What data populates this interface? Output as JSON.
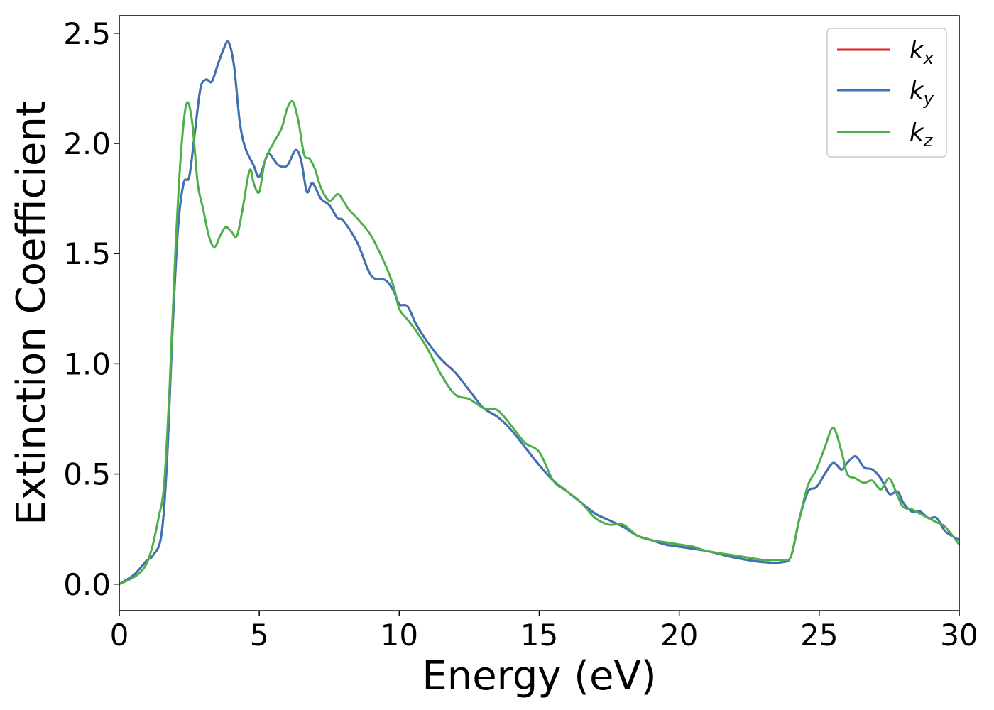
{
  "chart_data": {
    "type": "line",
    "title": "",
    "xlabel": "Energy (eV)",
    "ylabel": "Extinction Coefficient",
    "xlim": [
      0,
      30
    ],
    "ylim": [
      -0.12,
      2.58
    ],
    "xticks": [
      0,
      5,
      10,
      15,
      20,
      25,
      30
    ],
    "xtick_labels": [
      "0",
      "5",
      "10",
      "15",
      "20",
      "25",
      "30"
    ],
    "yticks": [
      0.0,
      0.5,
      1.0,
      1.5,
      2.0,
      2.5
    ],
    "ytick_labels": [
      "0.0",
      "0.5",
      "1.0",
      "1.5",
      "2.0",
      "2.5"
    ],
    "grid": false,
    "legend_position": "top-right",
    "series": [
      {
        "name": "k_x",
        "legend_main": "k",
        "legend_sub": "x",
        "color": "#e41a1c",
        "x": [
          0,
          0.5,
          0.8,
          1.0,
          1.2,
          1.5,
          1.7,
          1.9,
          2.1,
          2.3,
          2.5,
          2.7,
          2.9,
          3.1,
          3.3,
          3.5,
          3.7,
          3.9,
          4.1,
          4.3,
          4.5,
          4.8,
          5.0,
          5.3,
          5.5,
          5.7,
          6.0,
          6.3,
          6.5,
          6.7,
          6.9,
          7.2,
          7.5,
          7.8,
          8.0,
          8.5,
          9.0,
          9.5,
          9.8,
          10.0,
          10.3,
          10.6,
          11.0,
          11.5,
          12.0,
          12.5,
          13.0,
          13.5,
          14.0,
          14.5,
          15.0,
          15.5,
          16.0,
          16.5,
          17.0,
          17.5,
          18.0,
          18.5,
          19.0,
          19.5,
          20.0,
          21.0,
          22.0,
          23.0,
          23.7,
          24.0,
          24.3,
          24.6,
          24.9,
          25.2,
          25.5,
          25.8,
          26.0,
          26.3,
          26.6,
          26.9,
          27.2,
          27.5,
          27.8,
          28.0,
          28.3,
          28.6,
          28.9,
          29.2,
          29.5,
          30.0
        ],
        "y": [
          0.0,
          0.04,
          0.08,
          0.11,
          0.13,
          0.22,
          0.55,
          1.15,
          1.62,
          1.82,
          1.85,
          2.05,
          2.25,
          2.29,
          2.28,
          2.35,
          2.42,
          2.46,
          2.35,
          2.1,
          1.98,
          1.9,
          1.85,
          1.95,
          1.93,
          1.9,
          1.9,
          1.97,
          1.92,
          1.78,
          1.82,
          1.75,
          1.72,
          1.66,
          1.65,
          1.55,
          1.4,
          1.38,
          1.33,
          1.27,
          1.26,
          1.18,
          1.1,
          1.02,
          0.96,
          0.88,
          0.8,
          0.76,
          0.7,
          0.62,
          0.54,
          0.47,
          0.42,
          0.37,
          0.32,
          0.29,
          0.26,
          0.22,
          0.2,
          0.18,
          0.17,
          0.15,
          0.12,
          0.1,
          0.1,
          0.13,
          0.3,
          0.42,
          0.44,
          0.5,
          0.55,
          0.52,
          0.55,
          0.58,
          0.53,
          0.52,
          0.48,
          0.41,
          0.42,
          0.37,
          0.33,
          0.33,
          0.3,
          0.3,
          0.24,
          0.2
        ]
      },
      {
        "name": "k_y",
        "legend_main": "k",
        "legend_sub": "y",
        "color": "#3b74b6",
        "x": [
          0,
          0.5,
          0.8,
          1.0,
          1.2,
          1.5,
          1.7,
          1.9,
          2.1,
          2.3,
          2.5,
          2.7,
          2.9,
          3.1,
          3.3,
          3.5,
          3.7,
          3.9,
          4.1,
          4.3,
          4.5,
          4.8,
          5.0,
          5.3,
          5.5,
          5.7,
          6.0,
          6.3,
          6.5,
          6.7,
          6.9,
          7.2,
          7.5,
          7.8,
          8.0,
          8.5,
          9.0,
          9.5,
          9.8,
          10.0,
          10.3,
          10.6,
          11.0,
          11.5,
          12.0,
          12.5,
          13.0,
          13.5,
          14.0,
          14.5,
          15.0,
          15.5,
          16.0,
          16.5,
          17.0,
          17.5,
          18.0,
          18.5,
          19.0,
          19.5,
          20.0,
          21.0,
          22.0,
          23.0,
          23.7,
          24.0,
          24.3,
          24.6,
          24.9,
          25.2,
          25.5,
          25.8,
          26.0,
          26.3,
          26.6,
          26.9,
          27.2,
          27.5,
          27.8,
          28.0,
          28.3,
          28.6,
          28.9,
          29.2,
          29.5,
          30.0
        ],
        "y": [
          0.0,
          0.04,
          0.08,
          0.11,
          0.13,
          0.22,
          0.55,
          1.15,
          1.62,
          1.82,
          1.85,
          2.05,
          2.25,
          2.29,
          2.28,
          2.35,
          2.42,
          2.46,
          2.35,
          2.1,
          1.98,
          1.9,
          1.85,
          1.95,
          1.93,
          1.9,
          1.9,
          1.97,
          1.92,
          1.78,
          1.82,
          1.75,
          1.72,
          1.66,
          1.65,
          1.55,
          1.4,
          1.38,
          1.33,
          1.27,
          1.26,
          1.18,
          1.1,
          1.02,
          0.96,
          0.88,
          0.8,
          0.76,
          0.7,
          0.62,
          0.54,
          0.47,
          0.42,
          0.37,
          0.32,
          0.29,
          0.26,
          0.22,
          0.2,
          0.18,
          0.17,
          0.15,
          0.12,
          0.1,
          0.1,
          0.13,
          0.3,
          0.42,
          0.44,
          0.5,
          0.55,
          0.52,
          0.55,
          0.58,
          0.53,
          0.52,
          0.48,
          0.41,
          0.42,
          0.37,
          0.33,
          0.33,
          0.3,
          0.3,
          0.24,
          0.2
        ]
      },
      {
        "name": "k_z",
        "legend_main": "k",
        "legend_sub": "z",
        "color": "#4daf4a",
        "x": [
          0,
          0.5,
          0.8,
          1.0,
          1.2,
          1.4,
          1.6,
          1.8,
          2.0,
          2.2,
          2.4,
          2.6,
          2.8,
          3.0,
          3.2,
          3.4,
          3.6,
          3.8,
          4.0,
          4.2,
          4.4,
          4.6,
          4.7,
          4.8,
          5.0,
          5.2,
          5.5,
          5.8,
          6.0,
          6.2,
          6.4,
          6.6,
          6.8,
          7.0,
          7.2,
          7.5,
          7.8,
          8.0,
          8.2,
          8.5,
          9.0,
          9.5,
          9.8,
          10.0,
          10.3,
          10.6,
          11.0,
          11.5,
          12.0,
          12.5,
          13.0,
          13.5,
          14.0,
          14.5,
          15.0,
          15.5,
          16.0,
          16.5,
          17.0,
          17.5,
          18.0,
          18.5,
          19.0,
          19.5,
          20.0,
          20.5,
          21.0,
          22.0,
          22.5,
          23.0,
          23.5,
          23.8,
          24.0,
          24.3,
          24.6,
          24.9,
          25.2,
          25.5,
          25.8,
          26.0,
          26.3,
          26.6,
          26.9,
          27.2,
          27.5,
          27.8,
          28.0,
          28.3,
          28.6,
          28.9,
          29.2,
          29.5,
          30.0
        ],
        "y": [
          0.0,
          0.03,
          0.06,
          0.1,
          0.18,
          0.3,
          0.45,
          0.9,
          1.5,
          1.95,
          2.18,
          2.1,
          1.82,
          1.7,
          1.58,
          1.53,
          1.58,
          1.62,
          1.6,
          1.58,
          1.7,
          1.85,
          1.88,
          1.82,
          1.78,
          1.92,
          2.0,
          2.07,
          2.16,
          2.19,
          2.1,
          1.95,
          1.93,
          1.88,
          1.8,
          1.74,
          1.77,
          1.74,
          1.7,
          1.66,
          1.58,
          1.45,
          1.35,
          1.25,
          1.2,
          1.15,
          1.07,
          0.95,
          0.86,
          0.84,
          0.8,
          0.79,
          0.72,
          0.64,
          0.6,
          0.47,
          0.42,
          0.37,
          0.3,
          0.27,
          0.27,
          0.22,
          0.2,
          0.19,
          0.18,
          0.17,
          0.15,
          0.13,
          0.12,
          0.11,
          0.11,
          0.11,
          0.13,
          0.3,
          0.45,
          0.52,
          0.62,
          0.71,
          0.6,
          0.5,
          0.48,
          0.46,
          0.47,
          0.43,
          0.48,
          0.4,
          0.35,
          0.34,
          0.32,
          0.3,
          0.28,
          0.26,
          0.18
        ]
      }
    ]
  }
}
